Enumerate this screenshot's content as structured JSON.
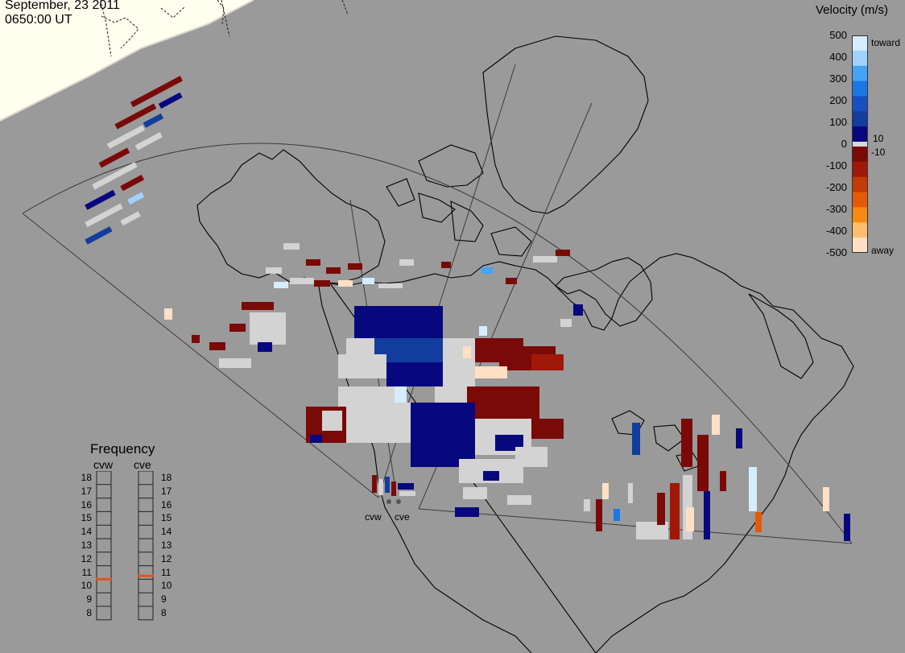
{
  "header": {
    "date": "September, 23 2011",
    "time": "0650:00 UT"
  },
  "velocity_legend": {
    "title": "Velocity (m/s)",
    "ticks": [
      "500",
      "400",
      "300",
      "200",
      "100",
      "0",
      "-100",
      "-200",
      "-300",
      "-400",
      "-500"
    ],
    "toward_label": "toward",
    "away_label": "away",
    "threshold_pos": "10",
    "threshold_neg": "-10",
    "colors_toward": [
      "#d6ecff",
      "#9fd2ff",
      "#43a3f5",
      "#1a78e6",
      "#1a4fc2",
      "#123c9e",
      "#08087e"
    ],
    "colors_away": [
      "#7a0a08",
      "#a01808",
      "#c33a08",
      "#e55a06",
      "#fb8a14",
      "#ffbe6e",
      "#ffe0c4"
    ],
    "zero_color": "#d8d8d8"
  },
  "frequency_panel": {
    "title": "Frequency",
    "radars": [
      "cvw",
      "cve"
    ],
    "scale": [
      "18",
      "17",
      "16",
      "15",
      "14",
      "13",
      "12",
      "11",
      "10",
      "9",
      "8"
    ],
    "values_mhz": {
      "cvw": 10.5,
      "cve": 10.75
    },
    "indicator_color": "#e2541a"
  },
  "radar_sites": [
    {
      "label": "cvw"
    },
    {
      "label": "cve"
    }
  ],
  "map_colors": {
    "background": "#9a9a9a",
    "daylight": "#fffff0",
    "coastline": "#000000",
    "fov_boundary": "#3c3c3c",
    "low_velocity_grey": "#d3d3d3"
  }
}
